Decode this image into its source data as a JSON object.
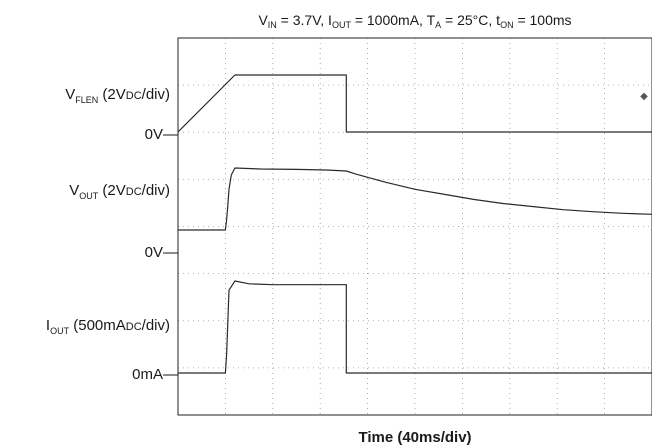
{
  "chart_data": {
    "type": "line",
    "title": {
      "v_label": "V",
      "v_sub": "IN",
      "v_val": " = 3.7V, ",
      "i_label": "I",
      "i_sub": "OUT",
      "i_val": " = 1000mA, ",
      "t_label": "T",
      "t_sub": "A",
      "t_val": " = 25°C, ",
      "ton_label": "t",
      "ton_sub": "ON",
      "ton_val": " = 100ms"
    },
    "xlabel": "Time (40ms/div)",
    "x_unit": "ms",
    "x_per_div": 40,
    "x_divisions": 10,
    "y_divisions": 8,
    "grid": true,
    "channel_labels": [
      {
        "main": "V",
        "sub": "FLEN",
        "rest": " (2V",
        "unit_sub": "DC",
        "tail": "/div)"
      },
      {
        "main": "V",
        "sub": "OUT",
        "rest": " (2V",
        "unit_sub": "DC",
        "tail": "/div)"
      },
      {
        "main": "I",
        "sub": "OUT",
        "rest": " (500mA",
        "unit_sub": "DC",
        "tail": "/div)"
      }
    ],
    "zero_labels": [
      "0V—",
      "0V—",
      "0mA—"
    ],
    "series": [
      {
        "channel": "VFLEN",
        "x": [
          0,
          48,
          48,
          142,
          142,
          400
        ],
        "y": [
          0,
          2.8,
          2.8,
          2.8,
          0,
          0
        ]
      },
      {
        "channel": "VOUT",
        "x": [
          0,
          40,
          41,
          42,
          43,
          45,
          48,
          70,
          100,
          125,
          142,
          150,
          175,
          200,
          225,
          250,
          275,
          300,
          325,
          350,
          375,
          400
        ],
        "y": [
          0.0,
          0.0,
          0.5,
          1.2,
          2.0,
          2.7,
          3.05,
          3.0,
          2.98,
          2.95,
          2.9,
          2.75,
          2.35,
          2.0,
          1.75,
          1.5,
          1.3,
          1.15,
          1.0,
          0.9,
          0.82,
          0.77
        ]
      },
      {
        "channel": "IOUT",
        "x": [
          0,
          40,
          41,
          43,
          48,
          60,
          80,
          100,
          120,
          140,
          142,
          142,
          400
        ],
        "y": [
          0,
          0,
          200,
          900,
          1000,
          970,
          960,
          960,
          960,
          960,
          960,
          0,
          0
        ]
      }
    ]
  }
}
